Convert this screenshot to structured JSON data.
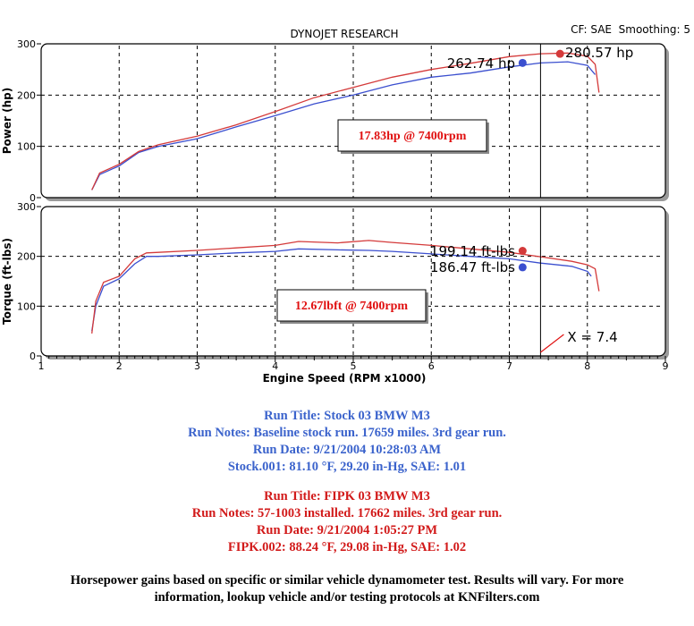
{
  "header": {
    "title": "DYNOJET RESEARCH",
    "settings": "CF: SAE  Smoothing: 5"
  },
  "colors": {
    "stock": "#3b4fcf",
    "fipk": "#d43a3a",
    "gain_text": "#e01010",
    "cursor_label": "#e01010",
    "grid": "#000000"
  },
  "chart_data": [
    {
      "type": "line",
      "ylabel": "Power (hp)",
      "xlim": [
        1,
        9
      ],
      "ylim": [
        0,
        300
      ],
      "yticks": [
        0,
        100,
        200,
        300
      ],
      "grid": true,
      "series": [
        {
          "name": "Stock 03 BMW M3",
          "x": [
            1.65,
            1.75,
            2.0,
            2.25,
            2.5,
            3.0,
            3.5,
            4.0,
            4.5,
            5.0,
            5.5,
            6.0,
            6.5,
            7.0,
            7.4,
            7.75,
            8.0,
            8.1
          ],
          "values": [
            15,
            45,
            62,
            88,
            100,
            115,
            138,
            160,
            183,
            200,
            220,
            235,
            243,
            255,
            262.74,
            265,
            258,
            240
          ]
        },
        {
          "name": "FIPK 03 BMW M3",
          "x": [
            1.65,
            1.75,
            2.0,
            2.25,
            2.5,
            3.0,
            3.5,
            4.0,
            4.5,
            5.0,
            5.5,
            6.0,
            6.5,
            7.0,
            7.4,
            7.75,
            8.0,
            8.1,
            8.15
          ],
          "values": [
            15,
            48,
            65,
            90,
            103,
            120,
            142,
            168,
            195,
            215,
            235,
            250,
            262,
            275,
            280.57,
            282,
            276,
            260,
            205
          ]
        }
      ],
      "markers": [
        {
          "series": "Stock 03 BMW M3",
          "x": 7.17,
          "y": 262.74,
          "label": "262.74 hp"
        },
        {
          "series": "FIPK 03 BMW M3",
          "x": 7.65,
          "y": 280.57,
          "label": "280.57 hp"
        }
      ],
      "annotation": "17.83hp @ 7400rpm"
    },
    {
      "type": "line",
      "ylabel": "Torque (ft-lbs)",
      "xlabel": "Engine Speed (RPM x1000)",
      "xlim": [
        1,
        9
      ],
      "ylim": [
        0,
        300
      ],
      "xticks": [
        1,
        2,
        3,
        4,
        5,
        6,
        7,
        8,
        9
      ],
      "yticks": [
        0,
        100,
        200,
        300
      ],
      "grid": true,
      "series": [
        {
          "name": "Stock 03 BMW M3",
          "x": [
            1.65,
            1.7,
            1.8,
            2.0,
            2.2,
            2.35,
            2.5,
            3.0,
            3.5,
            4.0,
            4.3,
            4.8,
            5.2,
            5.5,
            6.0,
            6.5,
            7.0,
            7.4,
            7.8,
            8.0,
            8.05
          ],
          "values": [
            50,
            100,
            140,
            155,
            185,
            200,
            200,
            203,
            207,
            210,
            215,
            213,
            212,
            210,
            205,
            200,
            195,
            186.47,
            180,
            170,
            160
          ]
        },
        {
          "name": "FIPK 03 BMW M3",
          "x": [
            1.65,
            1.7,
            1.8,
            2.0,
            2.2,
            2.35,
            2.5,
            3.0,
            3.5,
            4.0,
            4.3,
            4.8,
            5.2,
            5.5,
            6.0,
            6.5,
            7.0,
            7.4,
            7.8,
            8.0,
            8.1,
            8.15
          ],
          "values": [
            45,
            110,
            148,
            160,
            195,
            207,
            208,
            212,
            217,
            222,
            230,
            227,
            232,
            228,
            222,
            215,
            208,
            199.14,
            190,
            183,
            175,
            130
          ]
        }
      ],
      "markers": [
        {
          "series": "FIPK 03 BMW M3",
          "x": 7.17,
          "y": 211,
          "label": "199.14 ft-lbs"
        },
        {
          "series": "Stock 03 BMW M3",
          "x": 7.17,
          "y": 178,
          "label": "186.47 ft-lbs"
        }
      ],
      "annotation": "12.67lbft @ 7400rpm",
      "cursor": {
        "x": 7.4,
        "label": "X = 7.4"
      }
    }
  ],
  "notes": {
    "stock": [
      "Run Title: Stock 03 BMW M3",
      "Run Notes: Baseline stock run. 17659 miles. 3rd gear run.",
      "Run Date: 9/21/2004 10:28:03 AM",
      "Stock.001: 81.10 °F, 29.20 in-Hg, SAE: 1.01"
    ],
    "fipk": [
      "Run Title: FIPK 03 BMW M3",
      "Run Notes: 57-1003 installed. 17662 miles. 3rd gear run.",
      "Run Date: 9/21/2004 1:05:27 PM",
      "FIPK.002: 88.24 °F, 29.08 in-Hg, SAE: 1.02"
    ],
    "disclaimer": [
      "Horsepower gains based on specific or similar vehicle dynamometer test. Results will vary. For more",
      "information, lookup vehicle and/or testing protocols at KNFilters.com"
    ]
  }
}
